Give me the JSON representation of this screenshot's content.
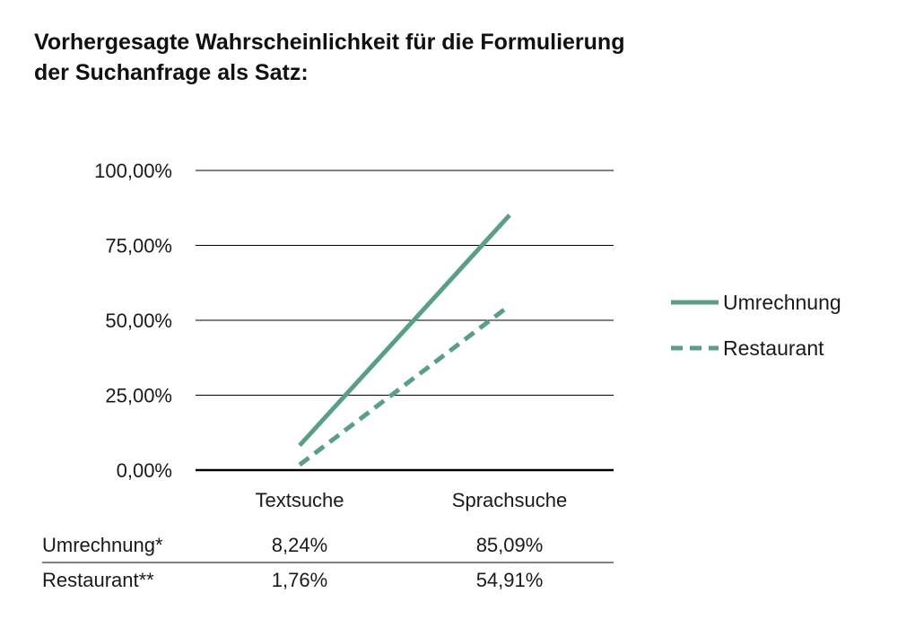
{
  "title_lines": [
    "Vorhergesagte Wahrscheinlichkeit für die Formulierung",
    "der Suchanfrage als Satz:"
  ],
  "colors": {
    "series": "#5a9e8a",
    "grid": "#000000",
    "text": "#1a1a1a"
  },
  "chart_data": {
    "type": "line",
    "title": "Vorhergesagte Wahrscheinlichkeit für die Formulierung der Suchanfrage als Satz:",
    "categories": [
      "Textsuche",
      "Sprachsuche"
    ],
    "y_ticks": [
      0,
      25,
      50,
      75,
      100
    ],
    "y_tick_labels": [
      "0,00%",
      "25,00%",
      "50,00%",
      "75,00%",
      "100,00%"
    ],
    "ylim": [
      0,
      100
    ],
    "grid": true,
    "legend_position": "right",
    "series": [
      {
        "name": "Umrechnung",
        "values": [
          8.24,
          85.09
        ],
        "dash": "solid"
      },
      {
        "name": "Restaurant",
        "values": [
          1.76,
          54.91
        ],
        "dash": "dashed"
      }
    ],
    "table": {
      "rows": [
        {
          "label": "Umrechnung*",
          "cells": [
            "8,24%",
            "85,09%"
          ]
        },
        {
          "label": "Restaurant**",
          "cells": [
            "1,76%",
            "54,91%"
          ]
        }
      ]
    }
  }
}
